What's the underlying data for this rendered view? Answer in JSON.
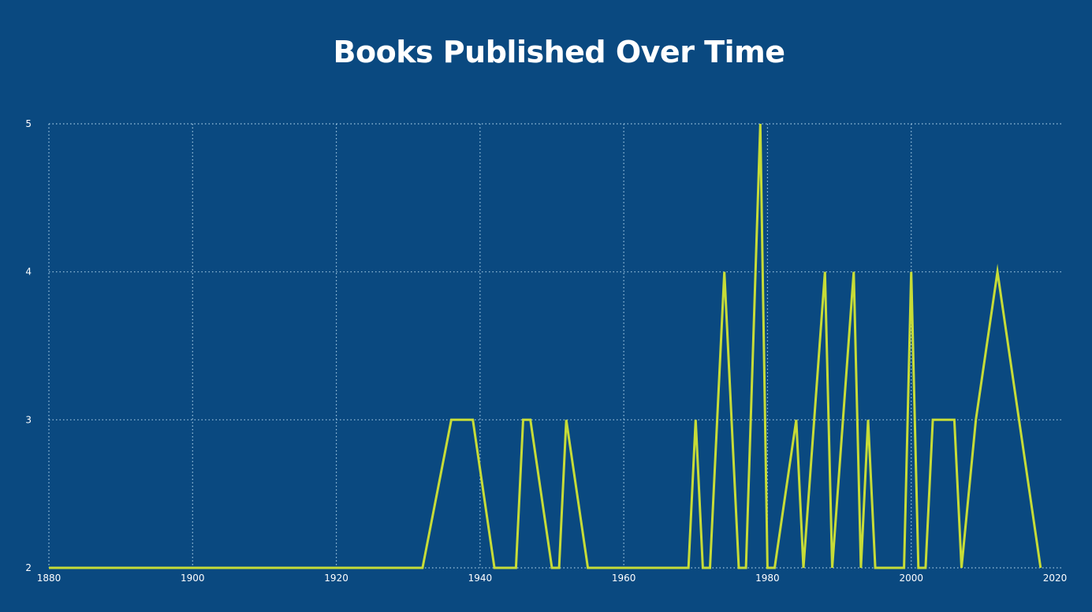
{
  "chart_data": {
    "type": "line",
    "title": "Books Published Over Time",
    "xlabel": "",
    "ylabel": "",
    "xlim": [
      1880,
      2020
    ],
    "ylim": [
      2,
      5
    ],
    "x_ticks": [
      1880,
      1900,
      1920,
      1940,
      1960,
      1980,
      2000,
      2020
    ],
    "y_ticks": [
      2,
      3,
      4,
      5
    ],
    "grid": true,
    "colors": {
      "background": "#0a4980",
      "line": "#c7dc37",
      "grid": "#9fc6e0",
      "text": "#ffffff"
    },
    "series": [
      {
        "x": [
          1880,
          1932,
          1936,
          1939,
          1942,
          1945,
          1946,
          1947,
          1950,
          1951,
          1952,
          1955,
          1969,
          1970,
          1971,
          1972,
          1974,
          1976,
          1977,
          1979,
          1980,
          1981,
          1984,
          1985,
          1988,
          1989,
          1992,
          1993,
          1994,
          1995,
          1999,
          2000,
          2001,
          2002,
          2003,
          2006,
          2007,
          2009,
          2012,
          2018
        ],
        "y": [
          2,
          2,
          3,
          3,
          2,
          2,
          3,
          3,
          2,
          2,
          3,
          2,
          2,
          3,
          2,
          2,
          4,
          2,
          2,
          5,
          2,
          2,
          3,
          2,
          4,
          2,
          4,
          2,
          3,
          2,
          2,
          4,
          2,
          2,
          3,
          3,
          2,
          3,
          4,
          2
        ]
      }
    ]
  }
}
